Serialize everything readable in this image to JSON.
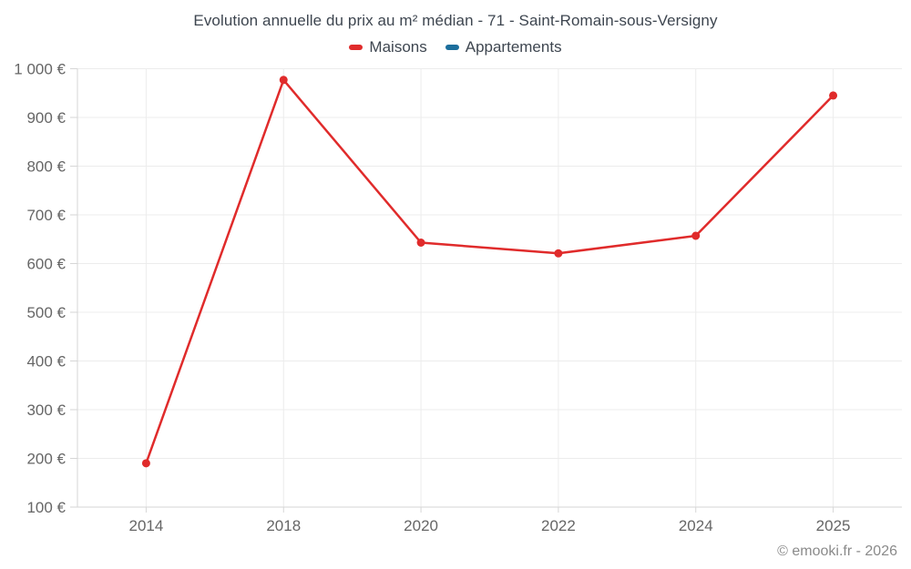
{
  "title": "Evolution annuelle du prix au m² médian - 71 - Saint-Romain-sous-Versigny",
  "legend": {
    "items": [
      {
        "label": "Maisons",
        "color": "#e02b2b"
      },
      {
        "label": "Appartements",
        "color": "#1c6e9c"
      }
    ]
  },
  "footer": {
    "credit": "© emooki.fr - 2026"
  },
  "colors": {
    "series_maisons": "#e02b2b",
    "series_appartements": "#1c6e9c",
    "grid": "#ececec",
    "axis": "#d6d6d6",
    "tick_label": "#666666",
    "title_text": "#3e4650",
    "footer_text": "#8a8a8a",
    "background": "#ffffff"
  },
  "chart_data": {
    "type": "line",
    "title": "Evolution annuelle du prix au m² médian - 71 - Saint-Romain-sous-Versigny",
    "categories": [
      "2014",
      "2018",
      "2020",
      "2022",
      "2024",
      "2025"
    ],
    "series": [
      {
        "name": "Maisons",
        "color": "#e02b2b",
        "values": [
          190,
          977,
          643,
          621,
          657,
          945
        ]
      },
      {
        "name": "Appartements",
        "color": "#1c6e9c",
        "values": []
      }
    ],
    "xlabel": "",
    "ylabel": "",
    "ylim": [
      100,
      1000
    ],
    "yticks": [
      100,
      200,
      300,
      400,
      500,
      600,
      700,
      800,
      900,
      1000
    ],
    "ytick_suffix": " €",
    "grid": true,
    "legend_position": "top",
    "marker": "circle"
  }
}
